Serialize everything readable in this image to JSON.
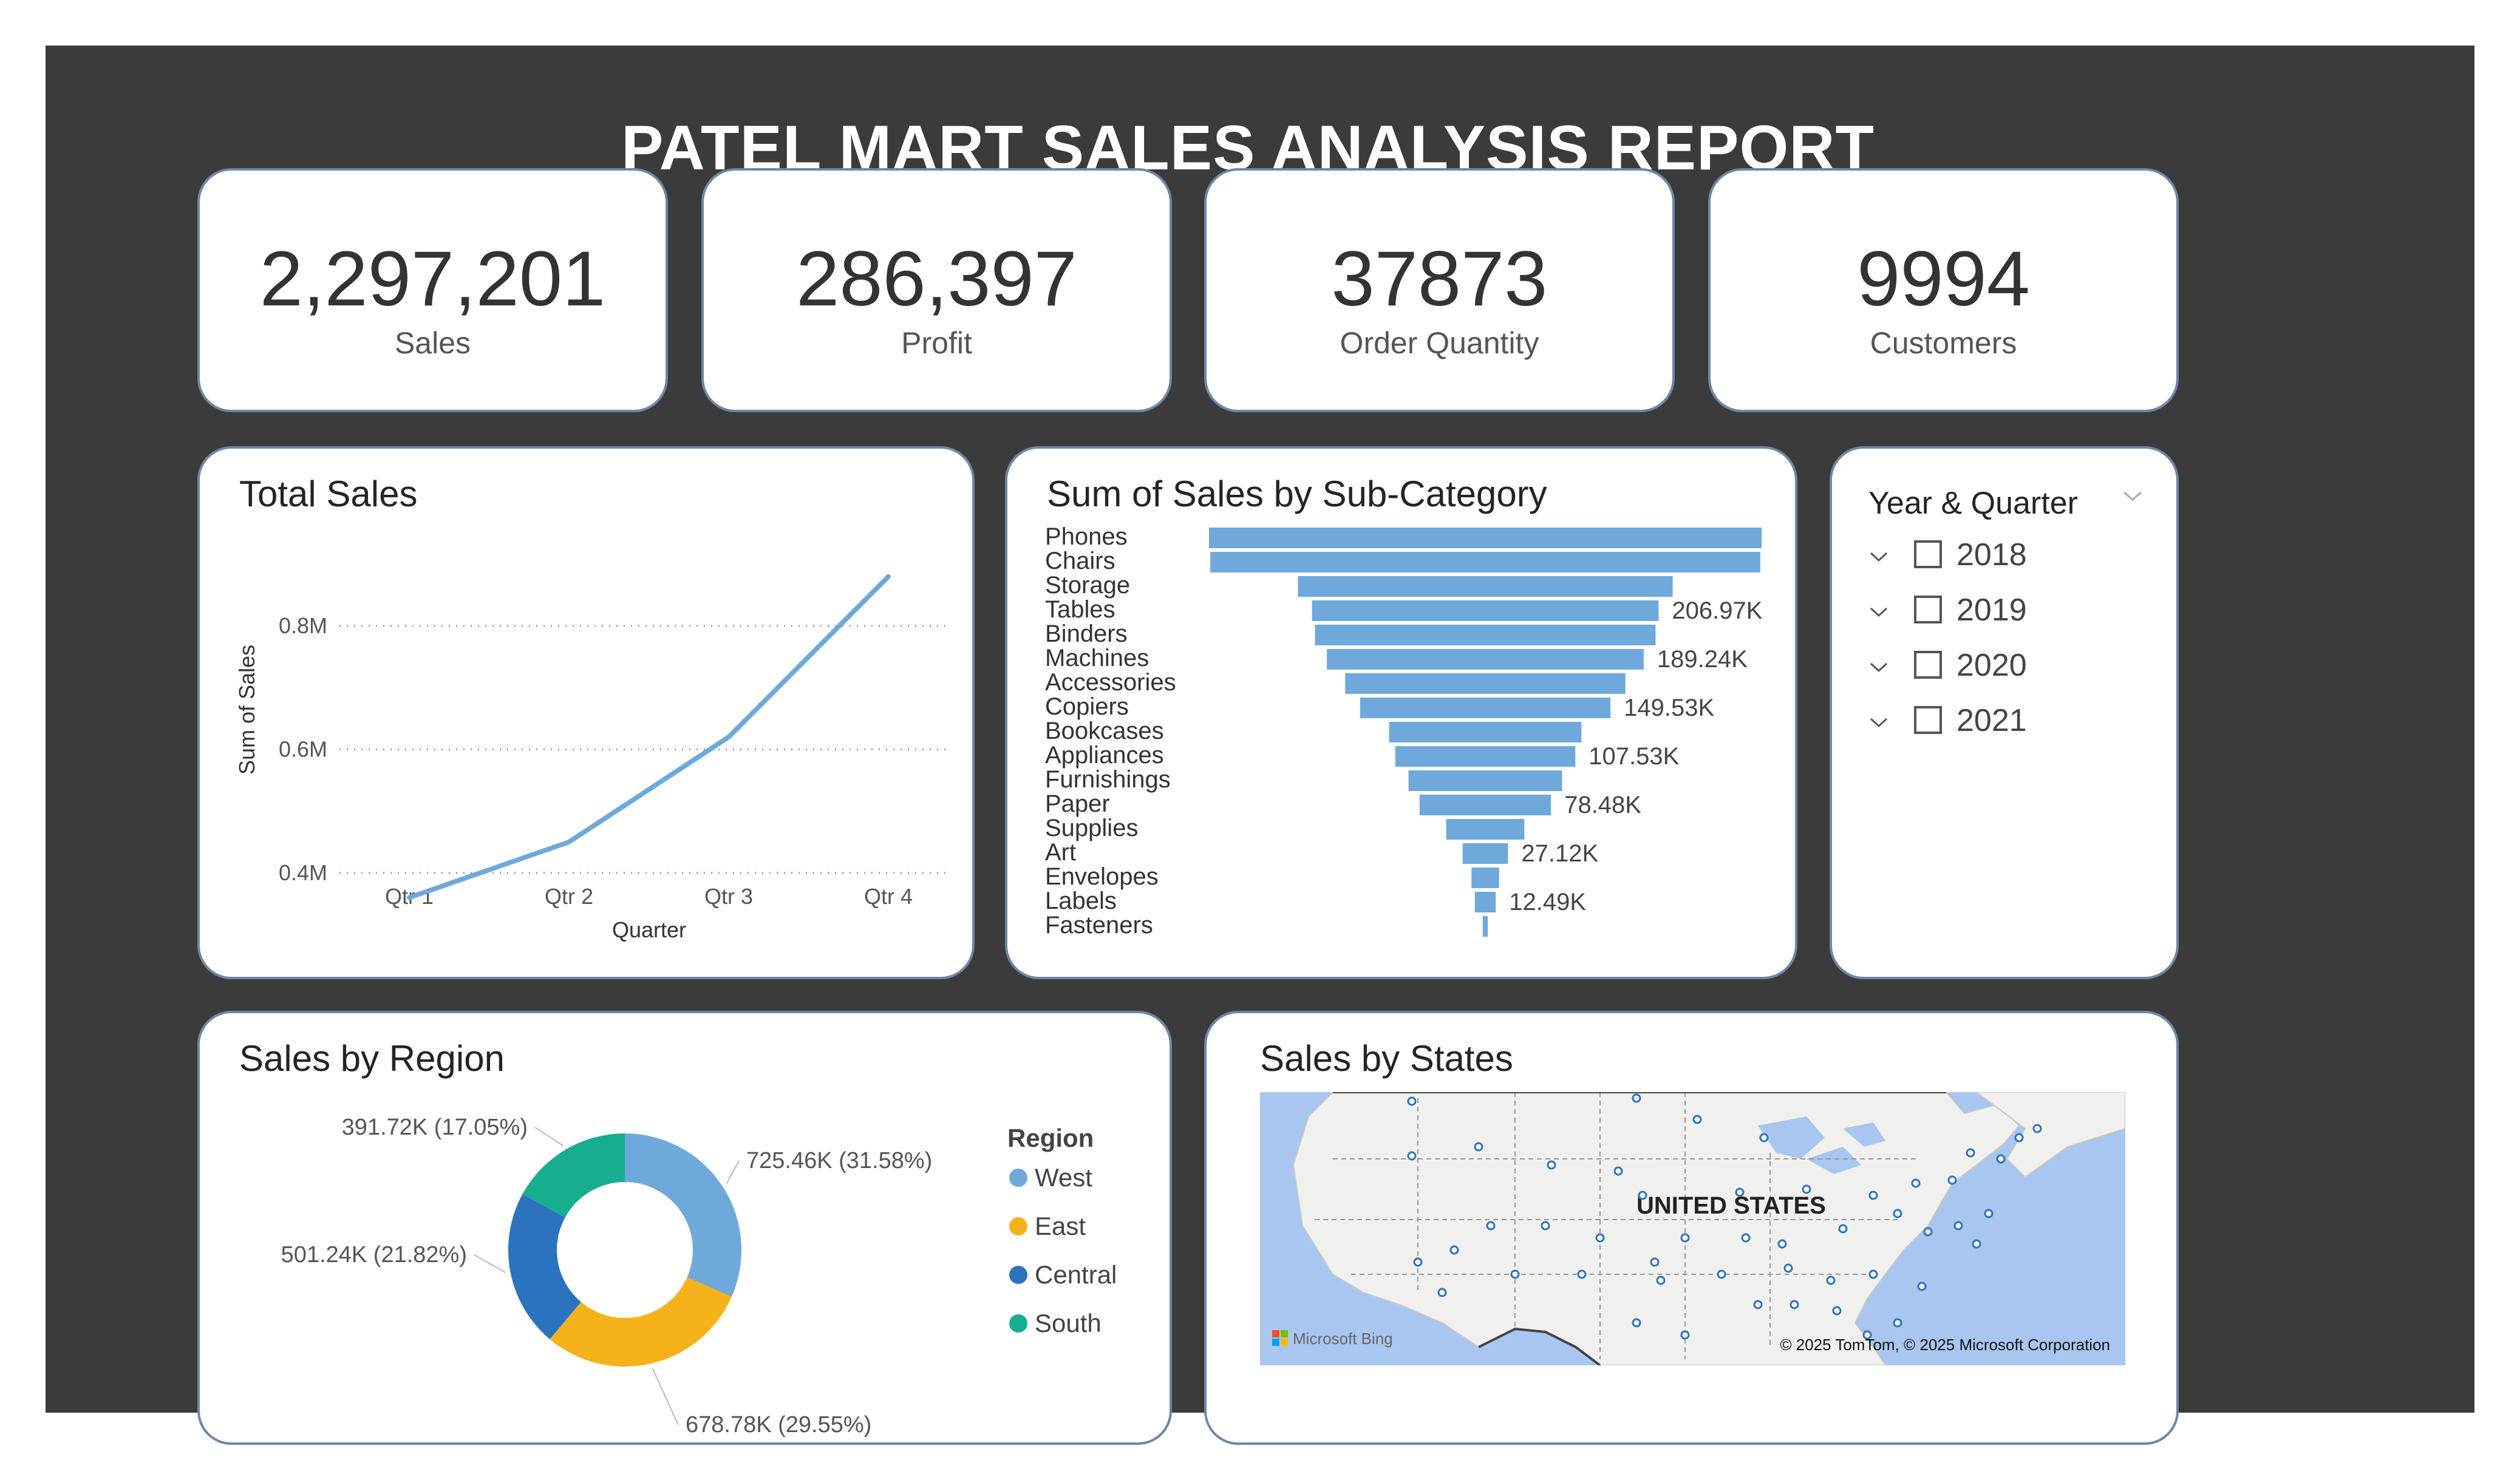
{
  "report": {
    "title": "PATEL MART SALES ANALYSIS REPORT"
  },
  "kpis": [
    {
      "value": "2,297,201",
      "label": "Sales"
    },
    {
      "value": "286,397",
      "label": "Profit"
    },
    {
      "value": "37873",
      "label": "Order Quantity"
    },
    {
      "value": "9994",
      "label": "Customers"
    }
  ],
  "total_sales": {
    "title": "Total Sales",
    "chart_data": {
      "type": "line",
      "categories": [
        "Qtr 1",
        "Qtr 2",
        "Qtr 3",
        "Qtr 4"
      ],
      "values": [
        0.36,
        0.45,
        0.62,
        0.88
      ],
      "xlabel": "Quarter",
      "ylabel": "Sum of Sales",
      "yticks": [
        {
          "v": 0.4,
          "label": "0.4M"
        },
        {
          "v": 0.6,
          "label": "0.6M"
        },
        {
          "v": 0.8,
          "label": "0.8M"
        }
      ],
      "ylim": [
        0.33,
        0.92
      ],
      "grid": true,
      "color": "#6fa9dc"
    }
  },
  "subcategory": {
    "title": "Sum of Sales by Sub-Category",
    "chart_data": {
      "type": "bar",
      "orientation": "horizontal-funnel",
      "categories": [
        "Phones",
        "Chairs",
        "Storage",
        "Tables",
        "Binders",
        "Machines",
        "Accessories",
        "Copiers",
        "Bookcases",
        "Appliances",
        "Furnishings",
        "Paper",
        "Supplies",
        "Art",
        "Envelopes",
        "Labels",
        "Fasteners"
      ],
      "values": [
        330.01,
        328.45,
        223.84,
        206.97,
        203.41,
        189.24,
        167.38,
        149.53,
        114.88,
        107.53,
        91.71,
        78.48,
        46.67,
        27.12,
        16.48,
        12.49,
        3.02
      ],
      "data_labels": [
        "",
        "",
        "",
        "206.97K",
        "",
        "189.24K",
        "",
        "149.53K",
        "",
        "107.53K",
        "",
        "78.48K",
        "",
        "27.12K",
        "",
        "12.49K",
        ""
      ],
      "color": "#6fa9dc"
    }
  },
  "slicer": {
    "title": "Year & Quarter",
    "items": [
      "2018",
      "2019",
      "2020",
      "2021"
    ]
  },
  "region": {
    "title": "Sales by Region",
    "chart_data": {
      "type": "pie",
      "donut": true,
      "legend_title": "Region",
      "slices": [
        {
          "name": "West",
          "value": 725.46,
          "label": "725.46K (31.58%)",
          "color": "#6fa9dc"
        },
        {
          "name": "East",
          "value": 678.78,
          "label": "678.78K (29.55%)",
          "color": "#f5b21a"
        },
        {
          "name": "Central",
          "value": 501.24,
          "label": "501.24K (21.82%)",
          "color": "#2b73bf"
        },
        {
          "name": "South",
          "value": 391.72,
          "label": "391.72K (17.05%)",
          "color": "#17ad8f"
        }
      ],
      "legend_position": "right"
    }
  },
  "states": {
    "title": "Sales by States",
    "map_label": "UNITED STATES",
    "brand": "Microsoft Bing",
    "copyright": "© 2025 TomTom, © 2025 Microsoft Corporation",
    "water_color": "#a8c6f0",
    "land_color": "#f0f0ee",
    "dot_color": "#2b73bf"
  }
}
